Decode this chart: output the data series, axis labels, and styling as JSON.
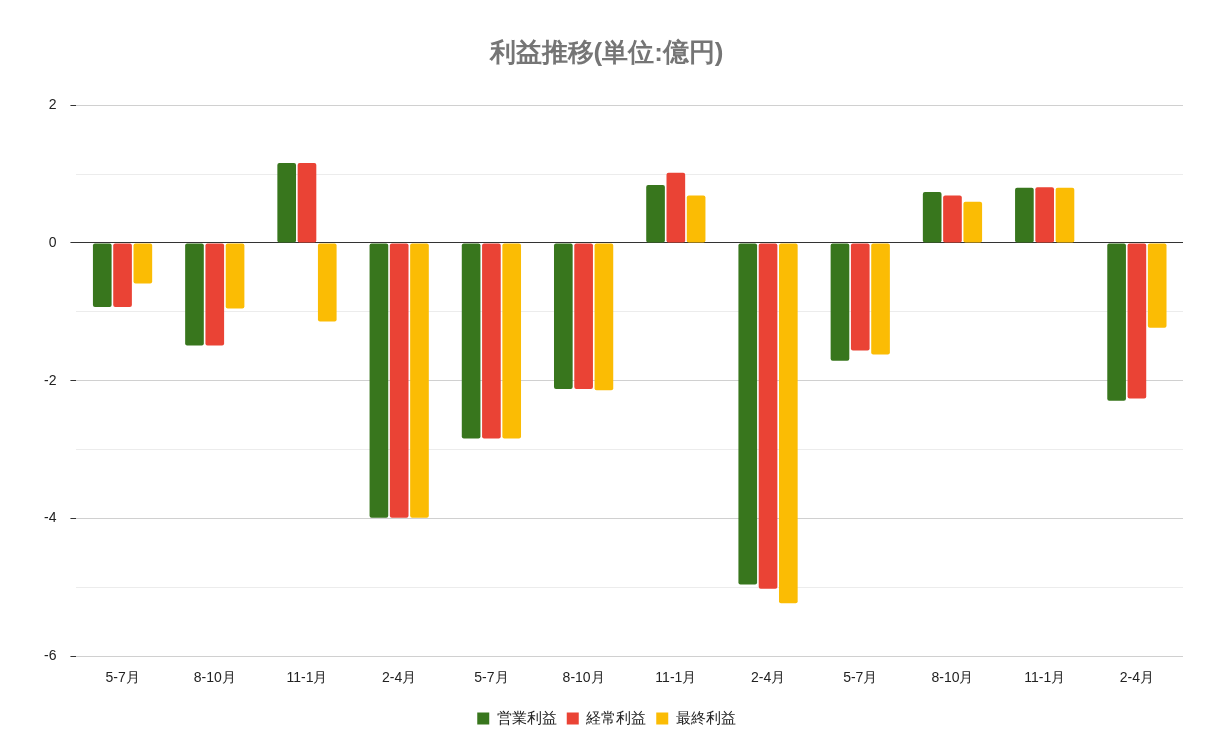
{
  "chart_data": {
    "type": "bar",
    "title": "利益推移(単位:億円)",
    "categories": [
      "5-7月",
      "8-10月",
      "11-1月",
      "2-4月",
      "5-7月",
      "8-10月",
      "11-1月",
      "2-4月",
      "5-7月",
      "8-10月",
      "11-1月",
      "2-4月"
    ],
    "series": [
      {
        "name": "営業利益",
        "color": "#38761d",
        "values": [
          -0.93,
          -1.49,
          1.16,
          -3.99,
          -2.84,
          -2.12,
          0.84,
          -4.96,
          -1.71,
          0.74,
          0.8,
          -2.29
        ]
      },
      {
        "name": "経常利益",
        "color": "#ea4335",
        "values": [
          -0.93,
          -1.49,
          1.16,
          -3.99,
          -2.84,
          -2.12,
          1.02,
          -5.02,
          -1.56,
          0.69,
          0.81,
          -2.26
        ]
      },
      {
        "name": "最終利益",
        "color": "#fbbc04",
        "values": [
          -0.59,
          -0.95,
          -1.14,
          -3.99,
          -2.84,
          -2.14,
          0.69,
          -5.23,
          -1.62,
          0.6,
          0.8,
          -1.23
        ]
      }
    ],
    "ylim": [
      -6,
      2
    ],
    "yticks": [
      -6,
      {
        "value": -5,
        "label": null
      },
      -4,
      {
        "value": -3,
        "label": null
      },
      -2,
      {
        "value": -1,
        "label": null
      },
      0,
      {
        "value": 1,
        "label": null
      },
      2
    ],
    "grid": "y",
    "legend": "bottom"
  }
}
